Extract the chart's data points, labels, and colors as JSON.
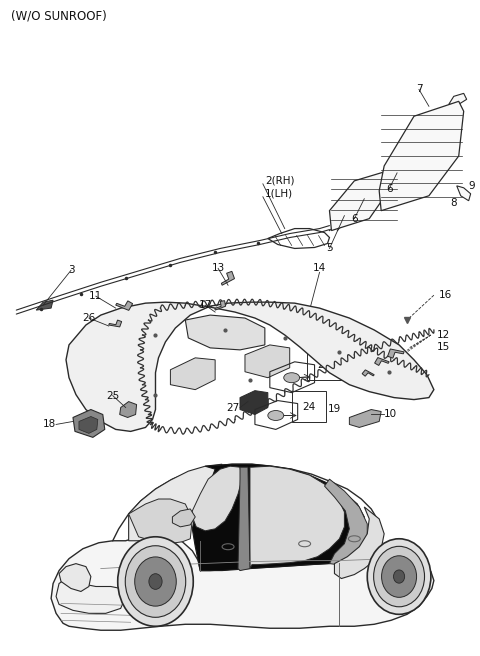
{
  "title": "(W/O SUNROOF)",
  "title_fontsize": 8.5,
  "bg_color": "#ffffff",
  "lc": "#2a2a2a",
  "tc": "#111111",
  "fig_width": 4.8,
  "fig_height": 6.56,
  "dpi": 100
}
